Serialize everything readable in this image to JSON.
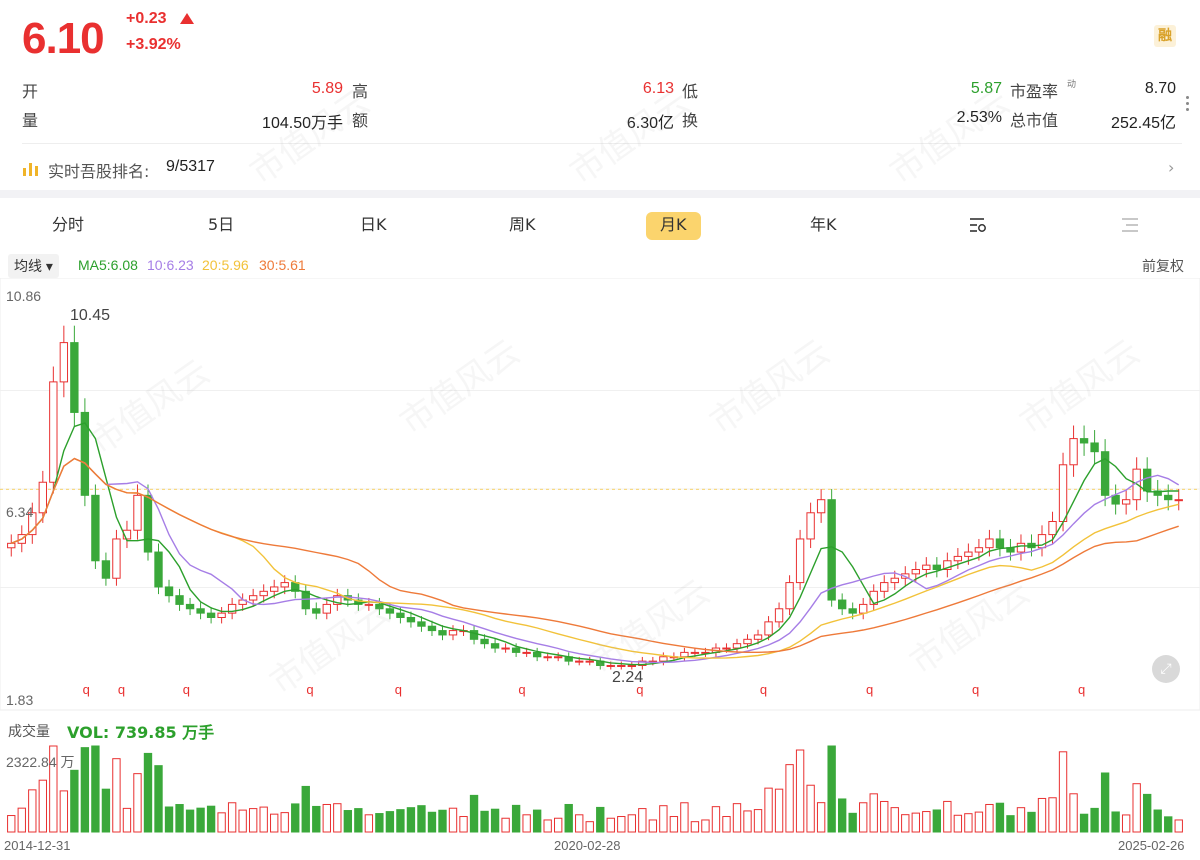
{
  "quote": {
    "price": "6.10",
    "change": "+0.23",
    "change_pct": "+3.92%",
    "margin_badge": "融",
    "open_label": "开",
    "open": "5.89",
    "high_label": "高",
    "high": "6.13",
    "low_label": "低",
    "low": "5.87",
    "pe_label": "市盈率",
    "pe_sup": "动",
    "pe": "8.70",
    "volume_label": "量",
    "volume": "104.50万手",
    "amount_label": "额",
    "amount": "6.30亿",
    "turnover_label": "换",
    "turnover": "2.53%",
    "mcap_label": "总市值",
    "mcap": "252.45亿"
  },
  "rank": {
    "label": "实时吾股排名:",
    "value": "9/5317"
  },
  "tabs": [
    "分时",
    "5日",
    "日K",
    "周K",
    "月K",
    "年K"
  ],
  "active_tab": "月K",
  "indicator": {
    "select_label": "均线",
    "ma5": "MA5:6.08",
    "ma10": "10:6.23",
    "ma20": "20:5.96",
    "ma30": "30:5.61",
    "adjust": "前复权",
    "colors": {
      "ma5": "#2ca02c",
      "ma10": "#a67ee6",
      "ma20": "#f2c23a",
      "ma30": "#ee7a3a",
      "up": "#e93030",
      "down": "#3aa83a"
    }
  },
  "chart_axis": {
    "ymax": "10.86",
    "ymin": "1.83",
    "current_mark": "6.34",
    "max_mark": "10.45",
    "min_mark": "2.24"
  },
  "volume": {
    "label": "成交量",
    "value": "VOL: 739.85 万手",
    "max_label": "2322.84 万"
  },
  "x_axis": [
    "2014-12-31",
    "2020-02-28",
    "2025-02-26"
  ],
  "watermark": "市值风云",
  "chart_data": {
    "type": "candlestick",
    "ylim": [
      1.83,
      10.86
    ],
    "ohlc_close_approx": [
      5.1,
      5.3,
      5.8,
      6.5,
      8.8,
      9.7,
      8.1,
      6.2,
      4.7,
      4.3,
      5.2,
      5.4,
      6.2,
      4.9,
      4.1,
      3.9,
      3.7,
      3.6,
      3.5,
      3.4,
      3.5,
      3.7,
      3.8,
      3.9,
      4.0,
      4.1,
      4.2,
      4.0,
      3.6,
      3.5,
      3.7,
      3.9,
      3.8,
      3.7,
      3.7,
      3.6,
      3.5,
      3.4,
      3.3,
      3.2,
      3.1,
      3.0,
      3.1,
      3.1,
      2.9,
      2.8,
      2.7,
      2.7,
      2.6,
      2.6,
      2.5,
      2.5,
      2.5,
      2.4,
      2.4,
      2.4,
      2.3,
      2.3,
      2.3,
      2.3,
      2.4,
      2.4,
      2.5,
      2.5,
      2.6,
      2.6,
      2.6,
      2.7,
      2.7,
      2.8,
      2.9,
      3.0,
      3.3,
      3.6,
      4.2,
      5.2,
      5.8,
      6.1,
      3.8,
      3.6,
      3.5,
      3.7,
      4.0,
      4.2,
      4.3,
      4.4,
      4.5,
      4.6,
      4.5,
      4.7,
      4.8,
      4.9,
      5.0,
      5.2,
      5.0,
      4.9,
      5.1,
      5.0,
      5.3,
      5.6,
      6.9,
      7.5,
      7.4,
      7.2,
      6.2,
      6.0,
      6.1,
      6.8,
      6.3,
      6.2,
      6.1,
      6.1
    ],
    "ma_lines": [
      "MA5",
      "MA10",
      "MA20",
      "MA30"
    ]
  }
}
